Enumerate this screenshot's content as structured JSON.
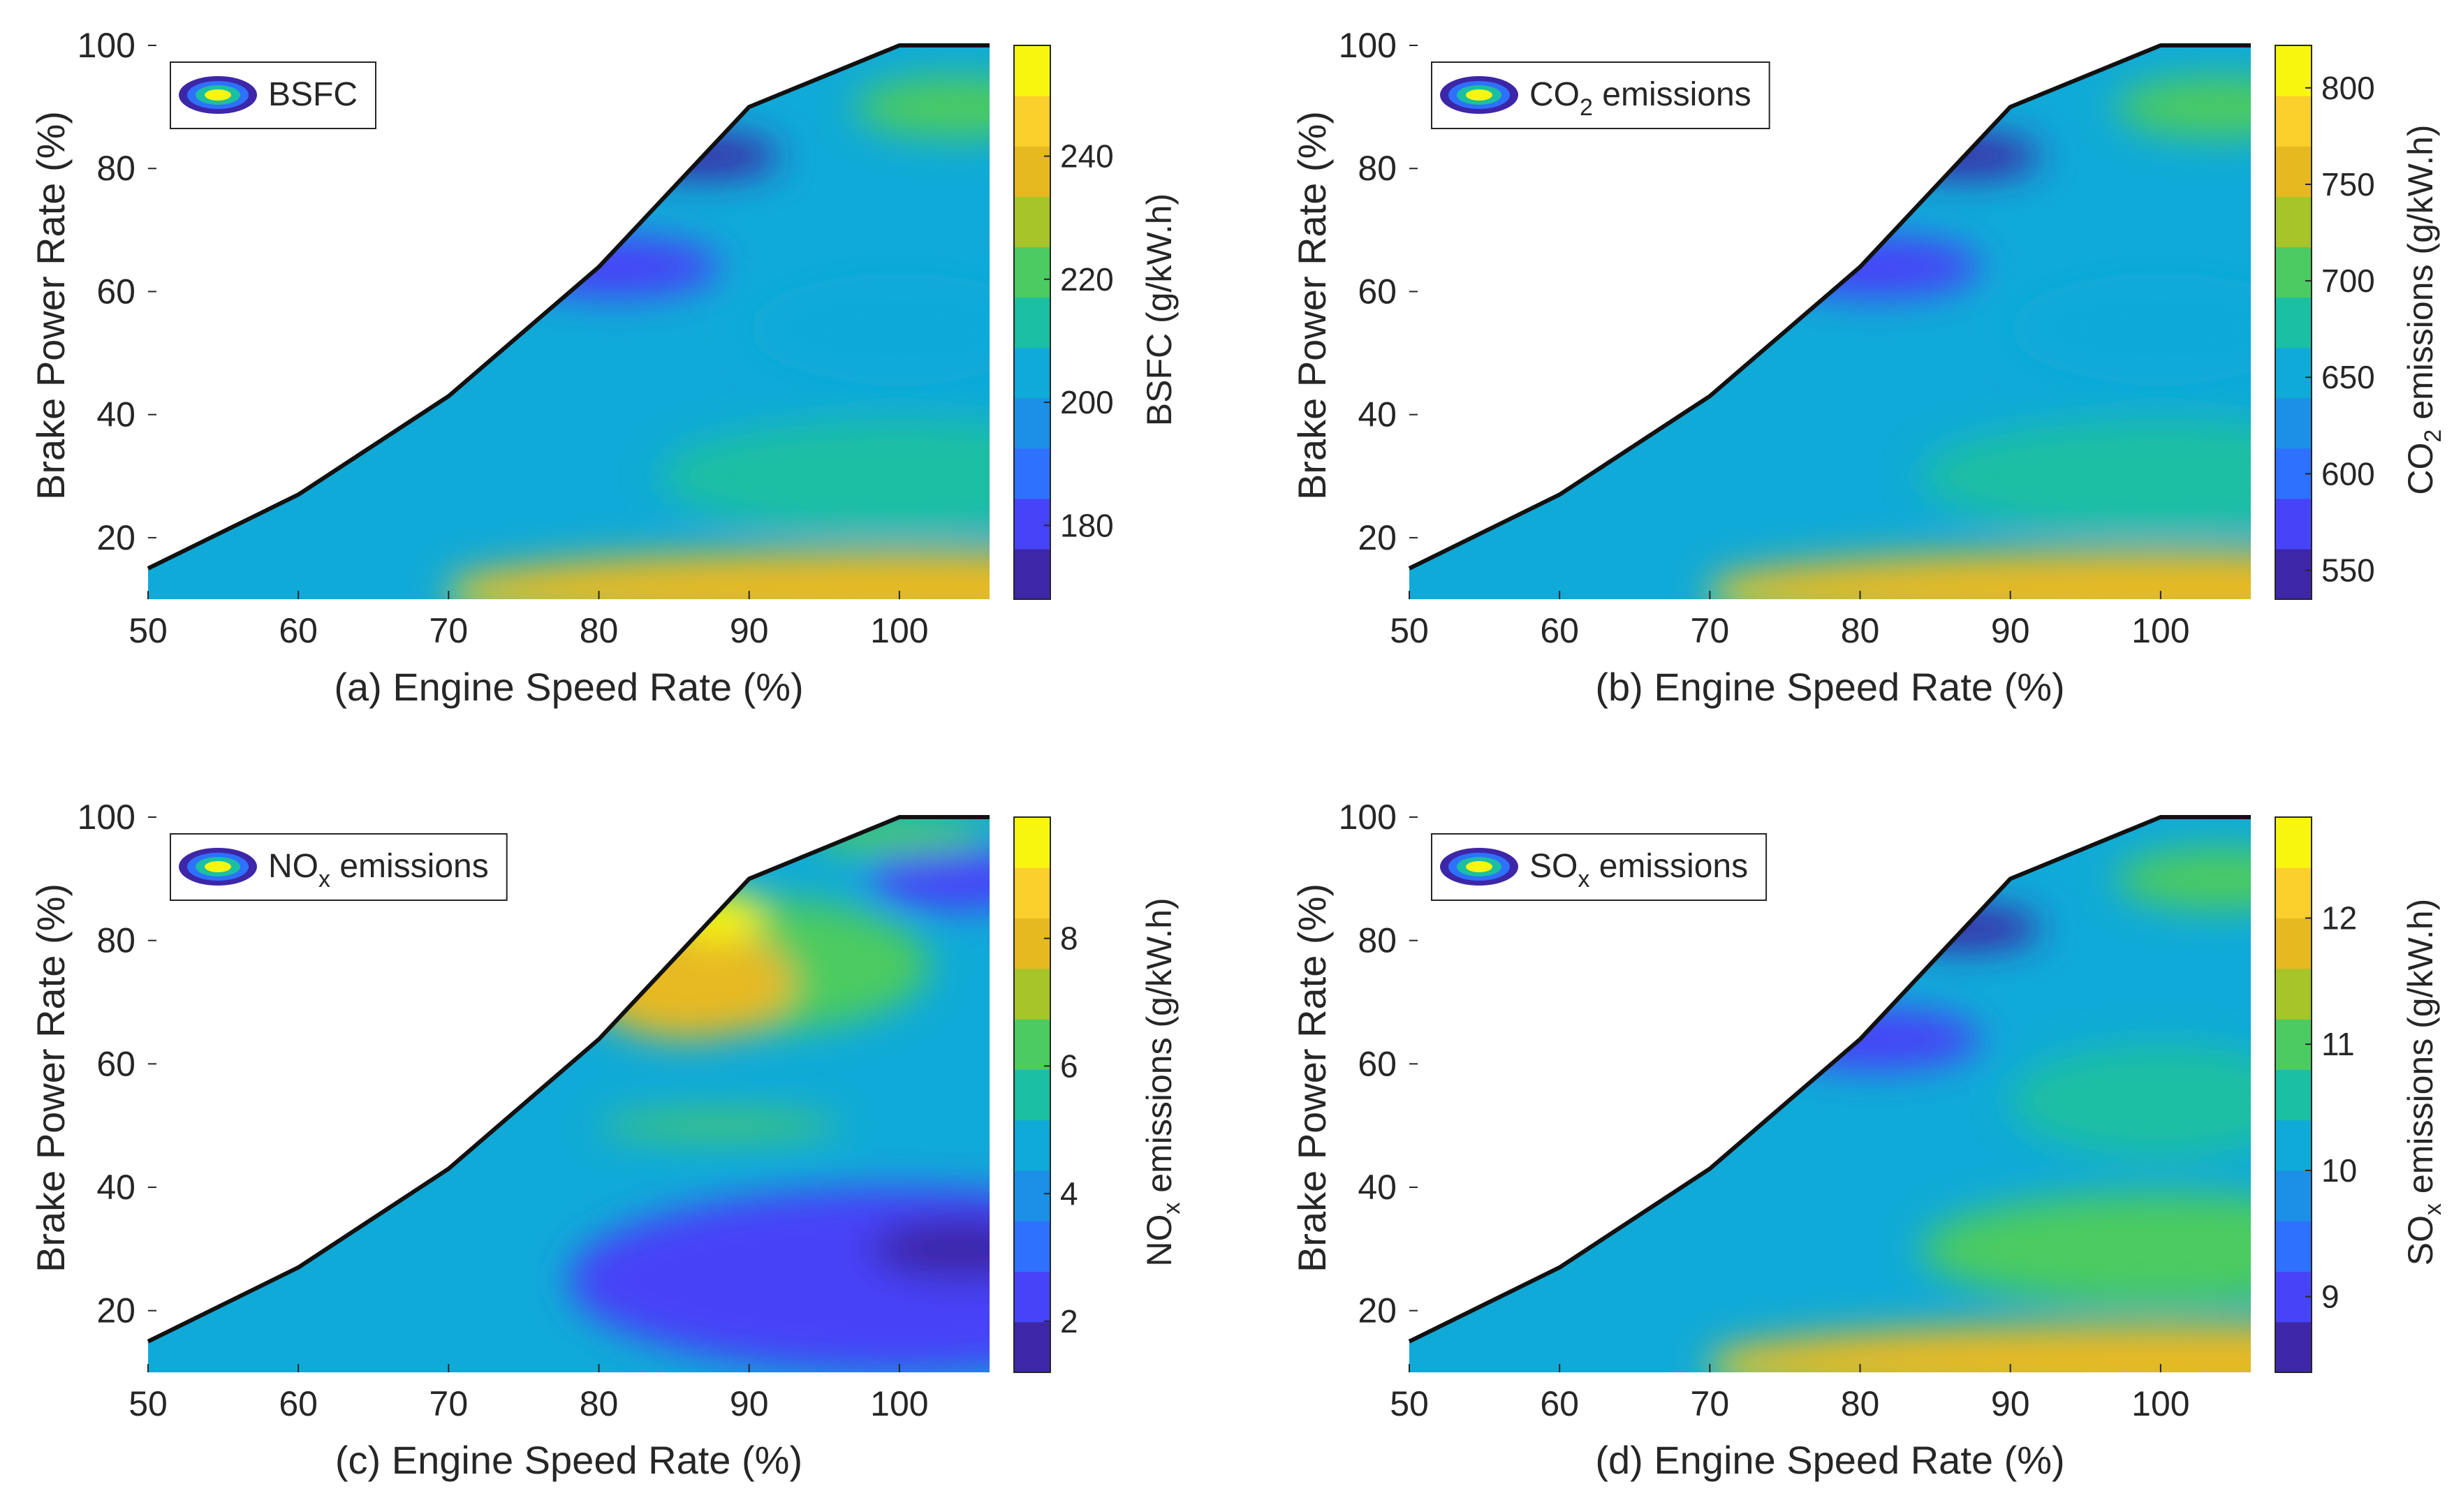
{
  "chart_data": [
    {
      "id": "a",
      "type": "contour",
      "title": "",
      "xlabel": "(a) Engine Speed Rate (%)",
      "ylabel": "Brake Power Rate (%)",
      "xlim": [
        50,
        106
      ],
      "ylim": [
        10,
        100
      ],
      "xticks": [
        50,
        60,
        70,
        80,
        90,
        100
      ],
      "yticks": [
        20,
        40,
        60,
        80,
        100
      ],
      "legend": {
        "label": "BSFC",
        "sub": "",
        "suffix": "",
        "position": "top-left"
      },
      "colorbar": {
        "label": "BSFC (g/kW.h)",
        "label_sub": "",
        "label_suffix": "",
        "range": [
          168,
          258
        ],
        "ticks": [
          180,
          200,
          220,
          240
        ]
      },
      "boundary": {
        "x": [
          50,
          60,
          70,
          80,
          90,
          100,
          106
        ],
        "y": [
          15,
          27,
          43,
          64,
          90,
          100,
          100
        ]
      },
      "blobs": [
        {
          "x": 106,
          "y": 10,
          "rx": 36,
          "ry": 4.5,
          "value": 254
        },
        {
          "x": 100,
          "y": 12,
          "rx": 30,
          "ry": 6,
          "value": 240
        },
        {
          "x": 104,
          "y": 29,
          "rx": 9,
          "ry": 7,
          "value": 226
        },
        {
          "x": 100,
          "y": 30,
          "rx": 16,
          "ry": 9,
          "value": 216
        },
        {
          "x": 100,
          "y": 54,
          "rx": 10,
          "ry": 9,
          "value": 205
        },
        {
          "x": 104,
          "y": 90,
          "rx": 7,
          "ry": 5,
          "value": 218
        },
        {
          "x": 81,
          "y": 64,
          "rx": 7,
          "ry": 5,
          "value": 180
        },
        {
          "x": 87,
          "y": 82,
          "rx": 5,
          "ry": 3.5,
          "value": 174
        }
      ]
    },
    {
      "id": "b",
      "type": "contour",
      "title": "",
      "xlabel": "(b) Engine Speed Rate (%)",
      "ylabel": "Brake Power Rate (%)",
      "xlim": [
        50,
        106
      ],
      "ylim": [
        10,
        100
      ],
      "xticks": [
        50,
        60,
        70,
        80,
        90,
        100
      ],
      "yticks": [
        20,
        40,
        60,
        80,
        100
      ],
      "legend": {
        "label": "CO",
        "sub": "2",
        "suffix": " emissions",
        "position": "top-left"
      },
      "colorbar": {
        "label": "CO",
        "label_sub": "2",
        "label_suffix": " emissions (g/kW.h)",
        "range": [
          535,
          822
        ],
        "ticks": [
          550,
          600,
          650,
          700,
          750,
          800
        ]
      },
      "boundary": {
        "x": [
          50,
          60,
          70,
          80,
          90,
          100,
          106
        ],
        "y": [
          15,
          27,
          43,
          64,
          90,
          100,
          100
        ]
      },
      "blobs": [
        {
          "x": 106,
          "y": 10,
          "rx": 36,
          "ry": 4.5,
          "value": 805
        },
        {
          "x": 100,
          "y": 12,
          "rx": 30,
          "ry": 6,
          "value": 765
        },
        {
          "x": 104,
          "y": 29,
          "rx": 9,
          "ry": 7,
          "value": 715
        },
        {
          "x": 100,
          "y": 30,
          "rx": 16,
          "ry": 9,
          "value": 685
        },
        {
          "x": 100,
          "y": 54,
          "rx": 10,
          "ry": 9,
          "value": 655
        },
        {
          "x": 104,
          "y": 90,
          "rx": 7,
          "ry": 5,
          "value": 695
        },
        {
          "x": 81,
          "y": 64,
          "rx": 7,
          "ry": 5,
          "value": 575
        },
        {
          "x": 87,
          "y": 82,
          "rx": 5,
          "ry": 3.5,
          "value": 555
        }
      ]
    },
    {
      "id": "c",
      "type": "contour",
      "title": "",
      "xlabel": "(c) Engine Speed Rate (%)",
      "ylabel": "Brake Power Rate (%)",
      "xlim": [
        50,
        106
      ],
      "ylim": [
        10,
        100
      ],
      "xticks": [
        50,
        60,
        70,
        80,
        90,
        100
      ],
      "yticks": [
        20,
        40,
        60,
        80,
        100
      ],
      "legend": {
        "label": "NO",
        "sub": "x",
        "suffix": " emissions",
        "position": "top-left"
      },
      "colorbar": {
        "label": "NO",
        "label_sub": "x",
        "label_suffix": " emissions (g/kW.h)",
        "range": [
          1.2,
          9.9
        ],
        "ticks": [
          2,
          4,
          6,
          8
        ]
      },
      "boundary": {
        "x": [
          50,
          60,
          70,
          80,
          90,
          100,
          106
        ],
        "y": [
          15,
          27,
          43,
          64,
          90,
          100,
          100
        ]
      },
      "blobs": [
        {
          "x": 100,
          "y": 25,
          "rx": 22,
          "ry": 15,
          "value": 2.6
        },
        {
          "x": 104,
          "y": 30,
          "rx": 6,
          "ry": 5,
          "value": 1.6
        },
        {
          "x": 104,
          "y": 90,
          "rx": 6,
          "ry": 5,
          "value": 2.2
        },
        {
          "x": 88,
          "y": 50,
          "rx": 8,
          "ry": 2,
          "value": 6.5
        },
        {
          "x": 90,
          "y": 76,
          "rx": 12,
          "ry": 11,
          "value": 6.3
        },
        {
          "x": 86,
          "y": 73,
          "rx": 7,
          "ry": 9,
          "value": 8.0
        },
        {
          "x": 88,
          "y": 84,
          "rx": 3,
          "ry": 4,
          "value": 9.6
        },
        {
          "x": 100,
          "y": 97,
          "rx": 6,
          "ry": 3,
          "value": 6.0
        }
      ]
    },
    {
      "id": "d",
      "type": "contour",
      "title": "",
      "xlabel": "(d) Engine Speed Rate (%)",
      "ylabel": "Brake Power Rate (%)",
      "xlim": [
        50,
        106
      ],
      "ylim": [
        10,
        100
      ],
      "xticks": [
        50,
        60,
        70,
        80,
        90,
        100
      ],
      "yticks": [
        20,
        40,
        60,
        80,
        100
      ],
      "legend": {
        "label": "SO",
        "sub": "x",
        "suffix": " emissions",
        "position": "top-left"
      },
      "colorbar": {
        "label": "SO",
        "label_sub": "x",
        "label_suffix": " emissions (g/kW.h)",
        "range": [
          8.4,
          12.8
        ],
        "ticks": [
          9,
          10,
          11,
          12
        ]
      },
      "boundary": {
        "x": [
          50,
          60,
          70,
          80,
          90,
          100,
          106
        ],
        "y": [
          15,
          27,
          43,
          64,
          90,
          100,
          100
        ]
      },
      "blobs": [
        {
          "x": 106,
          "y": 10,
          "rx": 36,
          "ry": 4.5,
          "value": 12.6
        },
        {
          "x": 100,
          "y": 12,
          "rx": 30,
          "ry": 6,
          "value": 12.0
        },
        {
          "x": 104,
          "y": 29,
          "rx": 9,
          "ry": 7,
          "value": 11.5
        },
        {
          "x": 100,
          "y": 30,
          "rx": 16,
          "ry": 9,
          "value": 11.0
        },
        {
          "x": 100,
          "y": 54,
          "rx": 10,
          "ry": 9,
          "value": 10.4
        },
        {
          "x": 104,
          "y": 90,
          "rx": 7,
          "ry": 5,
          "value": 11.0
        },
        {
          "x": 81,
          "y": 64,
          "rx": 7,
          "ry": 5,
          "value": 8.9
        },
        {
          "x": 87,
          "y": 82,
          "rx": 5,
          "ry": 3.5,
          "value": 8.6
        }
      ]
    }
  ],
  "colormap": [
    "#3e26a8",
    "#4743f8",
    "#2d71fe",
    "#1b90e6",
    "#10aad8",
    "#1bbfa2",
    "#4bcb61",
    "#a7c429",
    "#e7b921",
    "#fbcf2c",
    "#f8f60f"
  ]
}
